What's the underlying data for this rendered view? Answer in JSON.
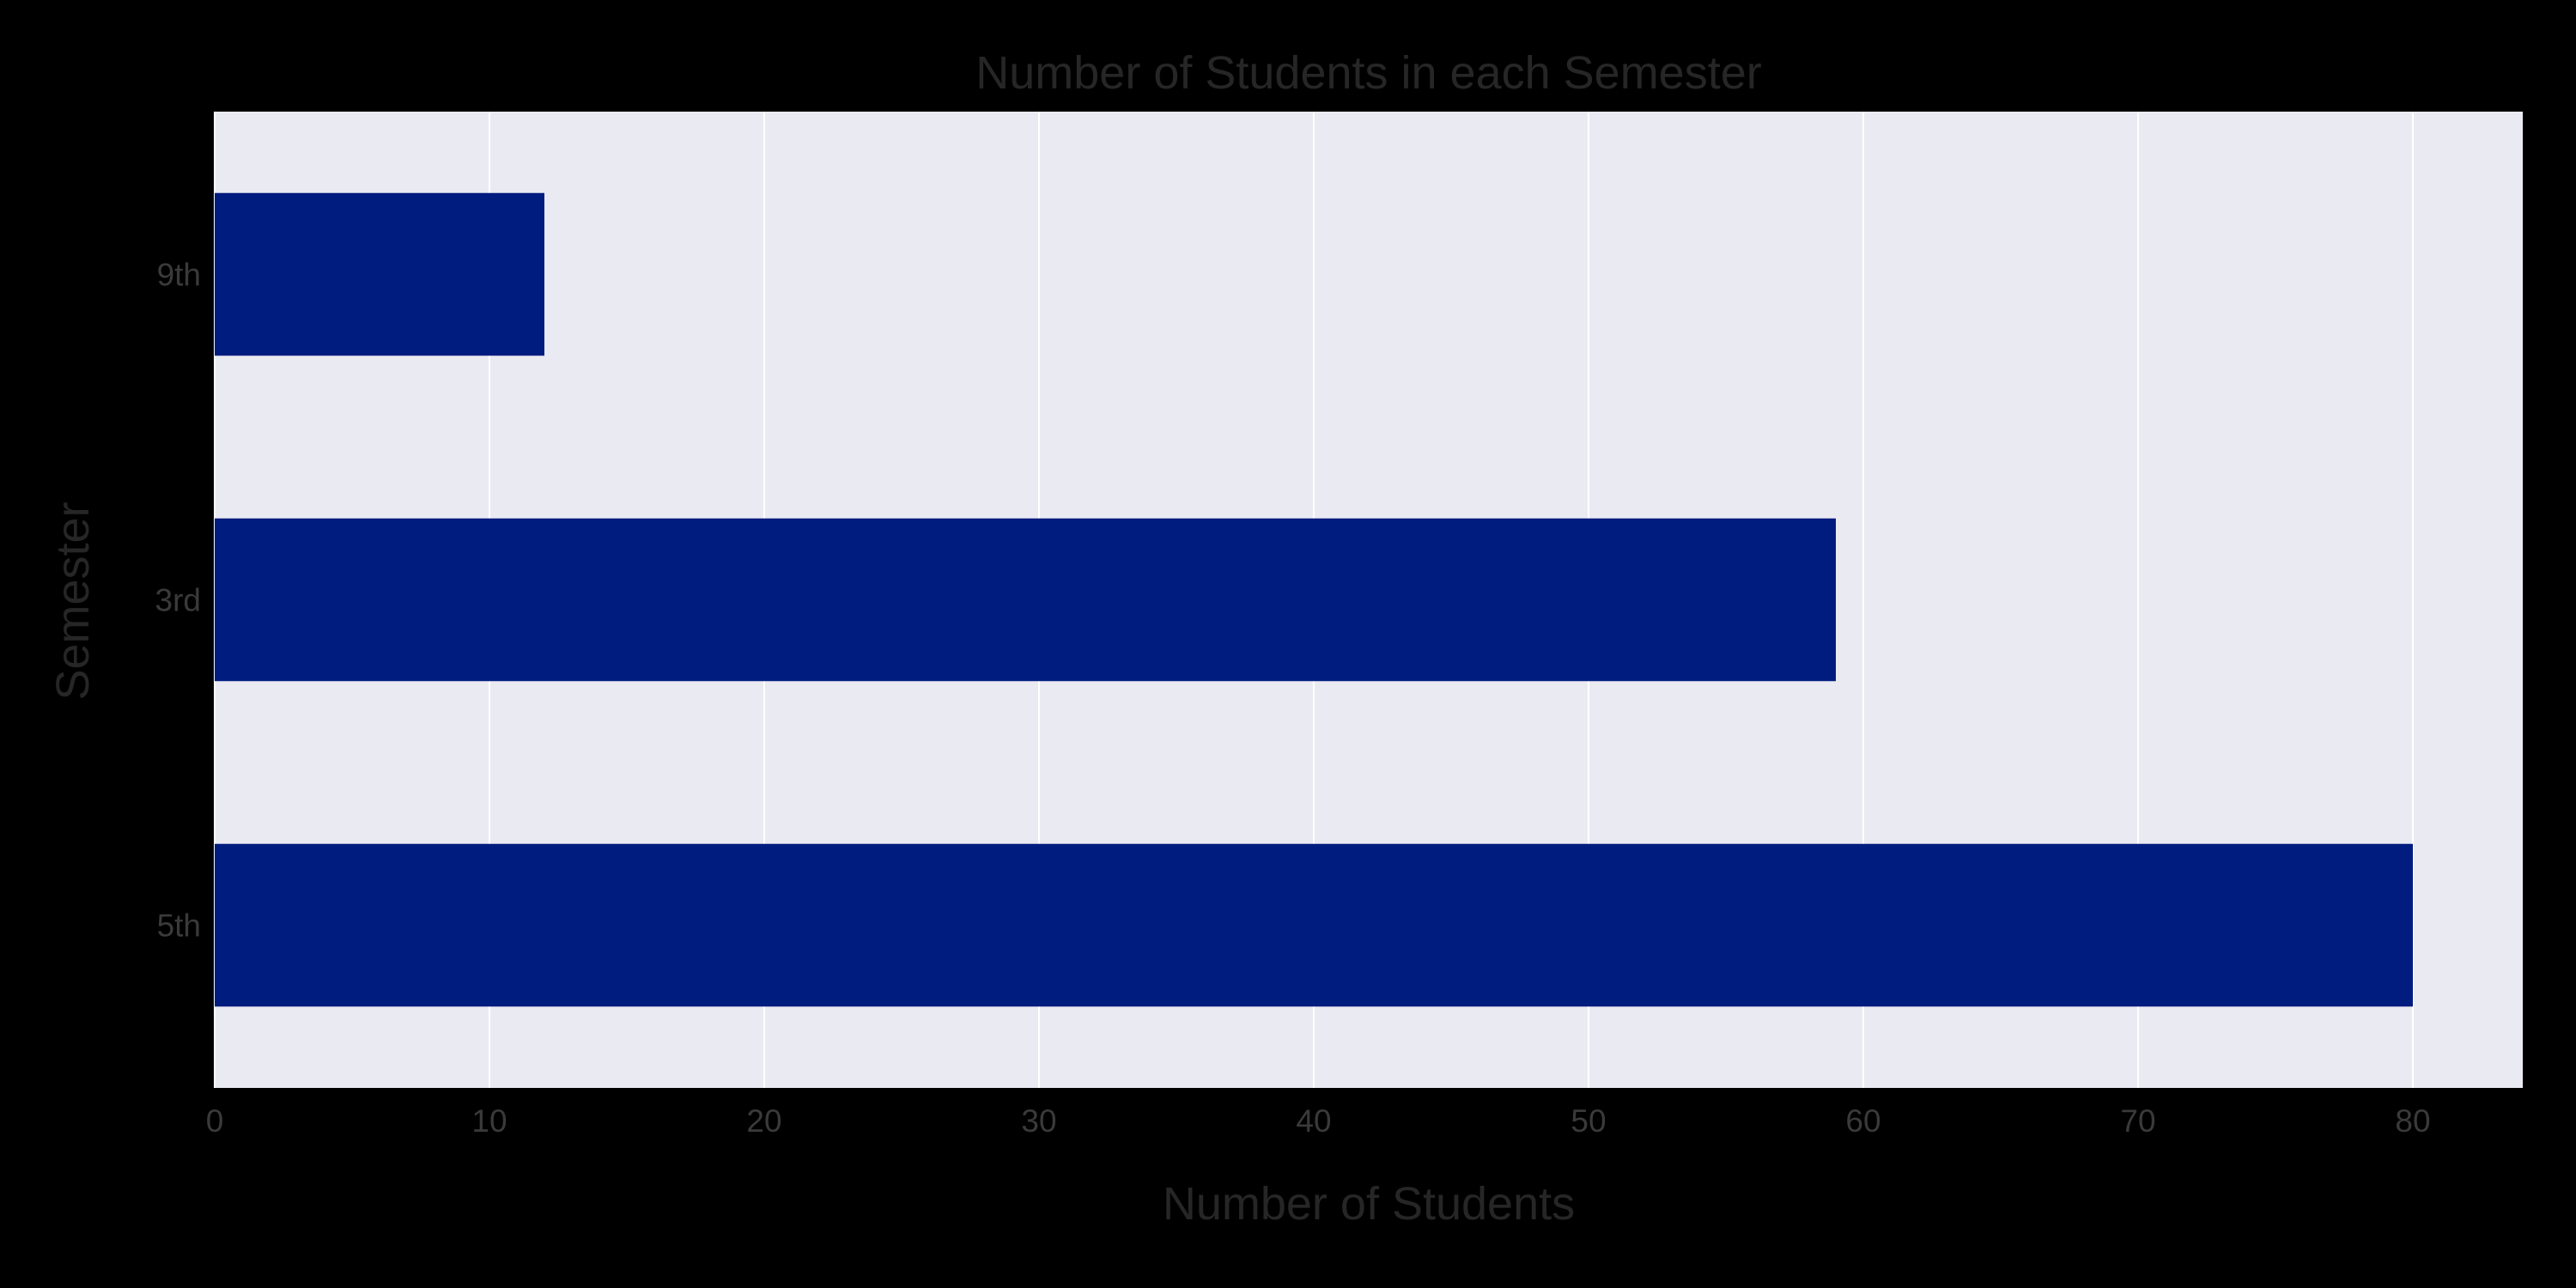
{
  "chart_data": {
    "type": "bar",
    "orientation": "horizontal",
    "title": "Number of Students in each Semester",
    "xlabel": "Number of Students",
    "ylabel": "Semester",
    "categories": [
      "5th",
      "3rd",
      "9th"
    ],
    "values": [
      80,
      59,
      12
    ],
    "xlim": [
      0,
      84
    ],
    "xticks": [
      0,
      10,
      20,
      30,
      40,
      50,
      60,
      70,
      80
    ],
    "grid": true,
    "colors": {
      "bar": "#001c7f",
      "plot_background": "#eaeaf2",
      "grid": "#ffffff",
      "figure_background": "#000000"
    }
  }
}
